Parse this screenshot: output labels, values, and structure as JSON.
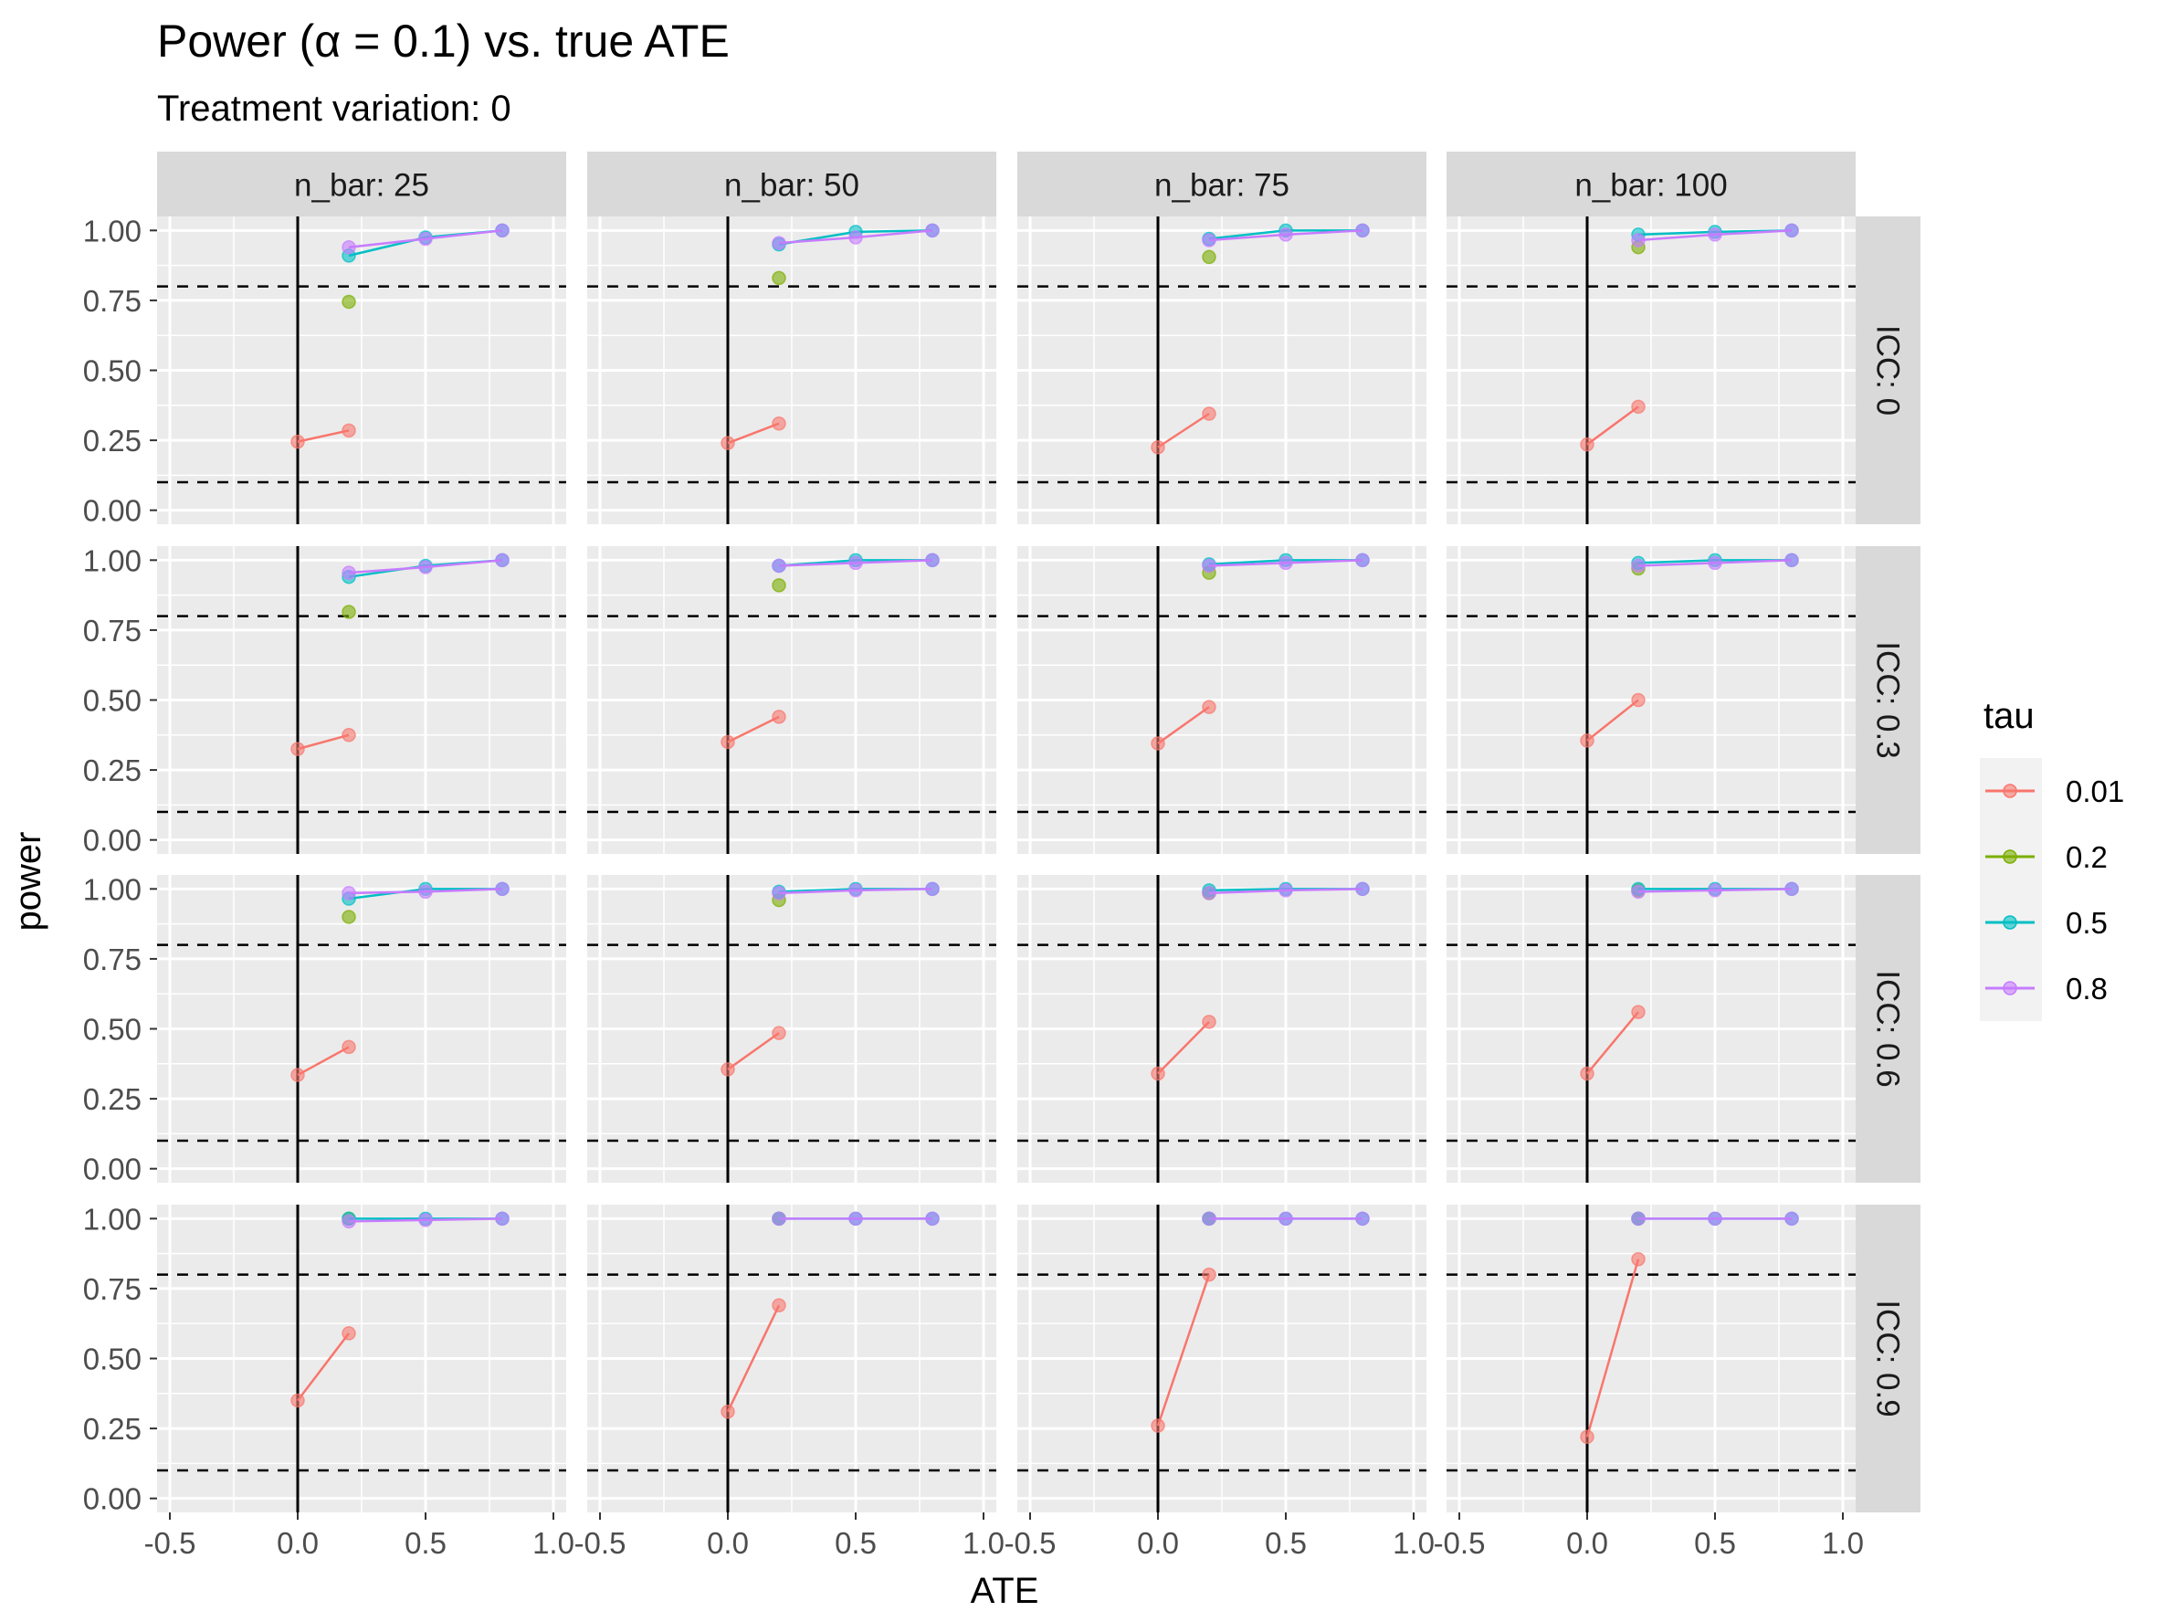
{
  "chart_data": {
    "type": "line",
    "title": "Power (α = 0.1) vs. true ATE",
    "subtitle": "Treatment variation: 0",
    "xlabel": "ATE",
    "ylabel": "power",
    "xlim": [
      -0.55,
      1.05
    ],
    "ylim": [
      -0.05,
      1.05
    ],
    "x_ticks": [
      -0.5,
      0.0,
      0.5,
      1.0
    ],
    "x_tick_labels": [
      "-0.5",
      "0.0",
      "0.5",
      "1.0"
    ],
    "y_ticks": [
      0.0,
      0.25,
      0.5,
      0.75,
      1.0
    ],
    "y_tick_labels": [
      "0.00",
      "0.25",
      "0.50",
      "0.75",
      "1.00"
    ],
    "reference_lines": {
      "vertical_x": 0,
      "horizontal_dashed_y": [
        0.1,
        0.8
      ]
    },
    "grid": true,
    "legend": {
      "title": "tau",
      "position": "right",
      "entries": [
        {
          "label": "0.01",
          "color": "#F8766D"
        },
        {
          "label": "0.2",
          "color": "#7CAE00"
        },
        {
          "label": "0.5",
          "color": "#00BFC4"
        },
        {
          "label": "0.8",
          "color": "#C77CFF"
        }
      ]
    },
    "facet_cols": [
      "n_bar: 25",
      "n_bar: 50",
      "n_bar: 75",
      "n_bar: 100"
    ],
    "facet_rows": [
      "ICC: 0",
      "ICC: 0.3",
      "ICC: 0.6",
      "ICC: 0.9"
    ],
    "panels": [
      {
        "row": 0,
        "col": 0,
        "series": [
          {
            "tau": "0.01",
            "x": [
              0,
              0.2
            ],
            "y": [
              0.245,
              0.285
            ]
          },
          {
            "tau": "0.2",
            "x": [
              0.2
            ],
            "y": [
              0.745
            ]
          },
          {
            "tau": "0.5",
            "x": [
              0.2,
              0.5,
              0.8
            ],
            "y": [
              0.91,
              0.975,
              1.0
            ]
          },
          {
            "tau": "0.8",
            "x": [
              0.2,
              0.5,
              0.8
            ],
            "y": [
              0.94,
              0.97,
              1.0
            ]
          }
        ]
      },
      {
        "row": 0,
        "col": 1,
        "series": [
          {
            "tau": "0.01",
            "x": [
              0,
              0.2
            ],
            "y": [
              0.24,
              0.31
            ]
          },
          {
            "tau": "0.2",
            "x": [
              0.2
            ],
            "y": [
              0.83
            ]
          },
          {
            "tau": "0.5",
            "x": [
              0.2,
              0.5,
              0.8
            ],
            "y": [
              0.95,
              0.995,
              1.0
            ]
          },
          {
            "tau": "0.8",
            "x": [
              0.2,
              0.5,
              0.8
            ],
            "y": [
              0.955,
              0.975,
              1.0
            ]
          }
        ]
      },
      {
        "row": 0,
        "col": 2,
        "series": [
          {
            "tau": "0.01",
            "x": [
              0,
              0.2
            ],
            "y": [
              0.225,
              0.345
            ]
          },
          {
            "tau": "0.2",
            "x": [
              0.2
            ],
            "y": [
              0.905
            ]
          },
          {
            "tau": "0.5",
            "x": [
              0.2,
              0.5,
              0.8
            ],
            "y": [
              0.97,
              1.0,
              1.0
            ]
          },
          {
            "tau": "0.8",
            "x": [
              0.2,
              0.5,
              0.8
            ],
            "y": [
              0.965,
              0.985,
              1.0
            ]
          }
        ]
      },
      {
        "row": 0,
        "col": 3,
        "series": [
          {
            "tau": "0.01",
            "x": [
              0,
              0.2
            ],
            "y": [
              0.235,
              0.37
            ]
          },
          {
            "tau": "0.2",
            "x": [
              0.2
            ],
            "y": [
              0.94
            ]
          },
          {
            "tau": "0.5",
            "x": [
              0.2,
              0.5,
              0.8
            ],
            "y": [
              0.985,
              0.995,
              1.0
            ]
          },
          {
            "tau": "0.8",
            "x": [
              0.2,
              0.5,
              0.8
            ],
            "y": [
              0.965,
              0.985,
              1.0
            ]
          }
        ]
      },
      {
        "row": 1,
        "col": 0,
        "series": [
          {
            "tau": "0.01",
            "x": [
              0,
              0.2
            ],
            "y": [
              0.325,
              0.375
            ]
          },
          {
            "tau": "0.2",
            "x": [
              0.2
            ],
            "y": [
              0.815
            ]
          },
          {
            "tau": "0.5",
            "x": [
              0.2,
              0.5,
              0.8
            ],
            "y": [
              0.94,
              0.98,
              1.0
            ]
          },
          {
            "tau": "0.8",
            "x": [
              0.2,
              0.5,
              0.8
            ],
            "y": [
              0.955,
              0.975,
              1.0
            ]
          }
        ]
      },
      {
        "row": 1,
        "col": 1,
        "series": [
          {
            "tau": "0.01",
            "x": [
              0,
              0.2
            ],
            "y": [
              0.35,
              0.44
            ]
          },
          {
            "tau": "0.2",
            "x": [
              0.2
            ],
            "y": [
              0.91
            ]
          },
          {
            "tau": "0.5",
            "x": [
              0.2,
              0.5,
              0.8
            ],
            "y": [
              0.98,
              1.0,
              1.0
            ]
          },
          {
            "tau": "0.8",
            "x": [
              0.2,
              0.5,
              0.8
            ],
            "y": [
              0.98,
              0.99,
              1.0
            ]
          }
        ]
      },
      {
        "row": 1,
        "col": 2,
        "series": [
          {
            "tau": "0.01",
            "x": [
              0,
              0.2
            ],
            "y": [
              0.345,
              0.475
            ]
          },
          {
            "tau": "0.2",
            "x": [
              0.2
            ],
            "y": [
              0.955
            ]
          },
          {
            "tau": "0.5",
            "x": [
              0.2,
              0.5,
              0.8
            ],
            "y": [
              0.985,
              1.0,
              1.0
            ]
          },
          {
            "tau": "0.8",
            "x": [
              0.2,
              0.5,
              0.8
            ],
            "y": [
              0.98,
              0.99,
              1.0
            ]
          }
        ]
      },
      {
        "row": 1,
        "col": 3,
        "series": [
          {
            "tau": "0.01",
            "x": [
              0,
              0.2
            ],
            "y": [
              0.355,
              0.5
            ]
          },
          {
            "tau": "0.2",
            "x": [
              0.2
            ],
            "y": [
              0.97
            ]
          },
          {
            "tau": "0.5",
            "x": [
              0.2,
              0.5,
              0.8
            ],
            "y": [
              0.99,
              1.0,
              1.0
            ]
          },
          {
            "tau": "0.8",
            "x": [
              0.2,
              0.5,
              0.8
            ],
            "y": [
              0.98,
              0.99,
              1.0
            ]
          }
        ]
      },
      {
        "row": 2,
        "col": 0,
        "series": [
          {
            "tau": "0.01",
            "x": [
              0,
              0.2
            ],
            "y": [
              0.335,
              0.435
            ]
          },
          {
            "tau": "0.2",
            "x": [
              0.2
            ],
            "y": [
              0.9
            ]
          },
          {
            "tau": "0.5",
            "x": [
              0.2,
              0.5,
              0.8
            ],
            "y": [
              0.965,
              1.0,
              1.0
            ]
          },
          {
            "tau": "0.8",
            "x": [
              0.2,
              0.5,
              0.8
            ],
            "y": [
              0.985,
              0.99,
              1.0
            ]
          }
        ]
      },
      {
        "row": 2,
        "col": 1,
        "series": [
          {
            "tau": "0.01",
            "x": [
              0,
              0.2
            ],
            "y": [
              0.355,
              0.485
            ]
          },
          {
            "tau": "0.2",
            "x": [
              0.2
            ],
            "y": [
              0.96
            ]
          },
          {
            "tau": "0.5",
            "x": [
              0.2,
              0.5,
              0.8
            ],
            "y": [
              0.99,
              1.0,
              1.0
            ]
          },
          {
            "tau": "0.8",
            "x": [
              0.2,
              0.5,
              0.8
            ],
            "y": [
              0.985,
              0.995,
              1.0
            ]
          }
        ]
      },
      {
        "row": 2,
        "col": 2,
        "series": [
          {
            "tau": "0.01",
            "x": [
              0,
              0.2
            ],
            "y": [
              0.34,
              0.525
            ]
          },
          {
            "tau": "0.2",
            "x": [
              0.2
            ],
            "y": [
              0.985
            ]
          },
          {
            "tau": "0.5",
            "x": [
              0.2,
              0.5,
              0.8
            ],
            "y": [
              0.995,
              1.0,
              1.0
            ]
          },
          {
            "tau": "0.8",
            "x": [
              0.2,
              0.5,
              0.8
            ],
            "y": [
              0.985,
              0.995,
              1.0
            ]
          }
        ]
      },
      {
        "row": 2,
        "col": 3,
        "series": [
          {
            "tau": "0.01",
            "x": [
              0,
              0.2
            ],
            "y": [
              0.34,
              0.56
            ]
          },
          {
            "tau": "0.2",
            "x": [
              0.2
            ],
            "y": [
              0.995
            ]
          },
          {
            "tau": "0.5",
            "x": [
              0.2,
              0.5,
              0.8
            ],
            "y": [
              1.0,
              1.0,
              1.0
            ]
          },
          {
            "tau": "0.8",
            "x": [
              0.2,
              0.5,
              0.8
            ],
            "y": [
              0.99,
              0.995,
              1.0
            ]
          }
        ]
      },
      {
        "row": 3,
        "col": 0,
        "series": [
          {
            "tau": "0.01",
            "x": [
              0,
              0.2
            ],
            "y": [
              0.35,
              0.59
            ]
          },
          {
            "tau": "0.2",
            "x": [
              0.2
            ],
            "y": [
              1.0
            ]
          },
          {
            "tau": "0.5",
            "x": [
              0.2,
              0.5,
              0.8
            ],
            "y": [
              1.0,
              1.0,
              1.0
            ]
          },
          {
            "tau": "0.8",
            "x": [
              0.2,
              0.5,
              0.8
            ],
            "y": [
              0.99,
              0.995,
              1.0
            ]
          }
        ]
      },
      {
        "row": 3,
        "col": 1,
        "series": [
          {
            "tau": "0.01",
            "x": [
              0,
              0.2
            ],
            "y": [
              0.31,
              0.69
            ]
          },
          {
            "tau": "0.2",
            "x": [
              0.2
            ],
            "y": [
              1.0
            ]
          },
          {
            "tau": "0.5",
            "x": [
              0.2,
              0.5,
              0.8
            ],
            "y": [
              1.0,
              1.0,
              1.0
            ]
          },
          {
            "tau": "0.8",
            "x": [
              0.2,
              0.5,
              0.8
            ],
            "y": [
              1.0,
              1.0,
              1.0
            ]
          }
        ]
      },
      {
        "row": 3,
        "col": 2,
        "series": [
          {
            "tau": "0.01",
            "x": [
              0,
              0.2
            ],
            "y": [
              0.26,
              0.8
            ]
          },
          {
            "tau": "0.2",
            "x": [
              0.2
            ],
            "y": [
              1.0
            ]
          },
          {
            "tau": "0.5",
            "x": [
              0.2,
              0.5,
              0.8
            ],
            "y": [
              1.0,
              1.0,
              1.0
            ]
          },
          {
            "tau": "0.8",
            "x": [
              0.2,
              0.5,
              0.8
            ],
            "y": [
              1.0,
              1.0,
              1.0
            ]
          }
        ]
      },
      {
        "row": 3,
        "col": 3,
        "series": [
          {
            "tau": "0.01",
            "x": [
              0,
              0.2
            ],
            "y": [
              0.22,
              0.855
            ]
          },
          {
            "tau": "0.2",
            "x": [
              0.2
            ],
            "y": [
              1.0
            ]
          },
          {
            "tau": "0.5",
            "x": [
              0.2,
              0.5,
              0.8
            ],
            "y": [
              1.0,
              1.0,
              1.0
            ]
          },
          {
            "tau": "0.8",
            "x": [
              0.2,
              0.5,
              0.8
            ],
            "y": [
              1.0,
              1.0,
              1.0
            ]
          }
        ]
      }
    ]
  }
}
